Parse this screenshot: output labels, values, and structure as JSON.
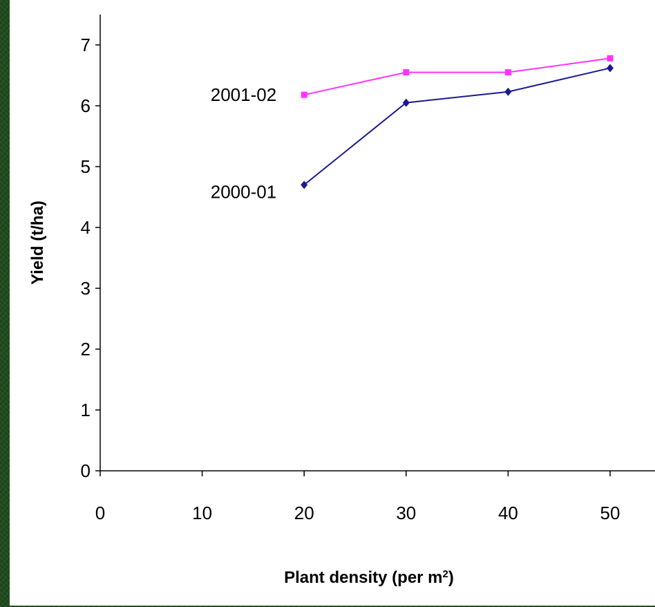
{
  "chart_data": {
    "type": "line",
    "title": "",
    "xlabel": "Plant density (per m",
    "xlabel_sup": "2",
    "xlabel_close": ")",
    "ylabel": "Yield (t/ha)",
    "xlim": [
      0,
      55
    ],
    "ylim": [
      0,
      7.5
    ],
    "x_ticks": [
      0,
      10,
      20,
      30,
      40,
      50
    ],
    "y_ticks": [
      0,
      1,
      2,
      3,
      4,
      5,
      6,
      7
    ],
    "grid": false,
    "legend": "inline labels",
    "series": [
      {
        "name": "2001-02",
        "color": "#ff33ff",
        "marker": "square",
        "x": [
          20,
          30,
          40,
          50
        ],
        "y": [
          6.18,
          6.55,
          6.55,
          6.78
        ]
      },
      {
        "name": "2000-01",
        "color": "#1a1a8c",
        "marker": "diamond",
        "x": [
          20,
          30,
          40,
          50
        ],
        "y": [
          4.7,
          6.05,
          6.23,
          6.62
        ]
      }
    ]
  }
}
